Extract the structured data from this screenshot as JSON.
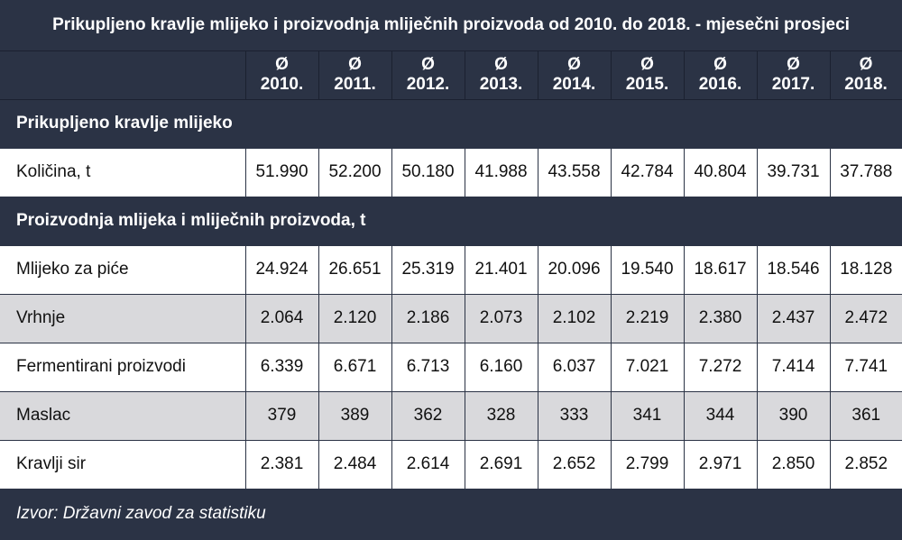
{
  "title": "Prikupljeno kravlje mlijeko i proizvodnja mliječnih proizvoda od 2010. do 2018. - mjesečni prosjeci",
  "years": [
    {
      "symbol": "Ø",
      "year": "2010."
    },
    {
      "symbol": "Ø",
      "year": "2011."
    },
    {
      "symbol": "Ø",
      "year": "2012."
    },
    {
      "symbol": "Ø",
      "year": "2013."
    },
    {
      "symbol": "Ø",
      "year": "2014."
    },
    {
      "symbol": "Ø",
      "year": "2015."
    },
    {
      "symbol": "Ø",
      "year": "2016."
    },
    {
      "symbol": "Ø",
      "year": "2017."
    },
    {
      "symbol": "Ø",
      "year": "2018."
    }
  ],
  "section1": {
    "heading": "Prikupljeno kravlje mlijeko",
    "rows": [
      {
        "label": "Količina, t",
        "values": [
          "51.990",
          "52.200",
          "50.180",
          "41.988",
          "43.558",
          "42.784",
          "40.804",
          "39.731",
          "37.788"
        ]
      }
    ]
  },
  "section2": {
    "heading": "Proizvodnja mlijeka i mliječnih proizvoda, t",
    "rows": [
      {
        "label": "Mlijeko za piće",
        "values": [
          "24.924",
          "26.651",
          "25.319",
          "21.401",
          "20.096",
          "19.540",
          "18.617",
          "18.546",
          "18.128"
        ]
      },
      {
        "label": "Vrhnje",
        "values": [
          "2.064",
          "2.120",
          "2.186",
          "2.073",
          "2.102",
          "2.219",
          "2.380",
          "2.437",
          "2.472"
        ]
      },
      {
        "label": "Fermentirani proizvodi",
        "values": [
          "6.339",
          "6.671",
          "6.713",
          "6.160",
          "6.037",
          "7.021",
          "7.272",
          "7.414",
          "7.741"
        ]
      },
      {
        "label": "Maslac",
        "values": [
          "379",
          "389",
          "362",
          "328",
          "333",
          "341",
          "344",
          "390",
          "361"
        ]
      },
      {
        "label": "Kravlji sir",
        "values": [
          "2.381",
          "2.484",
          "2.614",
          "2.691",
          "2.652",
          "2.799",
          "2.971",
          "2.850",
          "2.852"
        ]
      }
    ]
  },
  "source": "Izvor: Državni zavod za statistiku",
  "colors": {
    "header_bg": "#2b3345",
    "row_white": "#ffffff",
    "row_gray": "#d9d9dc",
    "text_light": "#ffffff",
    "text_dark": "#111111"
  }
}
